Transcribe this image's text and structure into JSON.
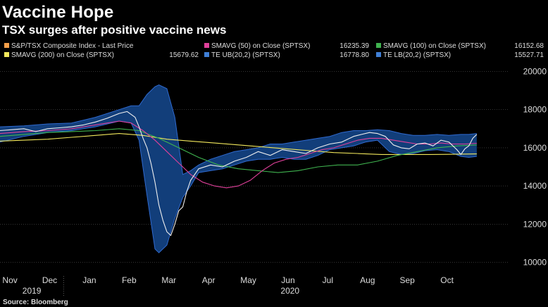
{
  "title": "Vaccine Hope",
  "subtitle": "TSX surges after positive vaccine news",
  "source": "Source: Bloomberg",
  "legend": [
    {
      "label": "S&P/TSX Composite Index - Last Price",
      "value": "",
      "color": "#f5a04a"
    },
    {
      "label": "SMAVG (50)  on Close (SPTSX)",
      "value": "16235.39",
      "color": "#e0409a"
    },
    {
      "label": "SMAVG (100)  on Close (SPTSX)",
      "value": "16152.68",
      "color": "#3fb34f"
    },
    {
      "label": "SMAVG (200)  on Close (SPTSX)",
      "value": "15679.62",
      "color": "#f2e85c"
    },
    {
      "label": "TE UB(20,2) (SPTSX)",
      "value": "16778.80",
      "color": "#3f7fd6"
    },
    {
      "label": "TE LB(20,2) (SPTSX)",
      "value": "15527.71",
      "color": "#3f7fd6"
    }
  ],
  "chart_data": {
    "type": "line",
    "ylim": [
      9500,
      20500
    ],
    "yticks": [
      10000,
      12000,
      14000,
      16000,
      18000,
      20000
    ],
    "xlim": [
      0,
      12.8
    ],
    "month_labels": [
      "Nov",
      "Dec",
      "Jan",
      "Feb",
      "Mar",
      "Apr",
      "May",
      "Jun",
      "Jul",
      "Aug",
      "Sep",
      "Oct"
    ],
    "year_labels": [
      {
        "label": "2019",
        "at": 0.8
      },
      {
        "label": "2020",
        "at": 7.3
      }
    ],
    "year_divider_at": 1.6,
    "grid": true,
    "colors": {
      "price": "#f0f0f0",
      "band_fill": "#123e7a",
      "band_edge": "#2f6ad0",
      "sma50": "#e0409a",
      "sma100": "#3fb34f",
      "sma200": "#f2e85c",
      "grid": "#555555"
    },
    "series": [
      {
        "key": "price",
        "x": [
          0,
          0.3,
          0.6,
          0.9,
          1.2,
          1.5,
          1.8,
          2.1,
          2.4,
          2.7,
          3.0,
          3.2,
          3.4,
          3.5,
          3.6,
          3.7,
          3.8,
          3.9,
          4.0,
          4.1,
          4.2,
          4.3,
          4.4,
          4.5,
          4.6,
          4.7,
          4.8,
          4.9,
          5.0,
          5.3,
          5.6,
          5.9,
          6.2,
          6.5,
          6.8,
          7.1,
          7.4,
          7.7,
          8.0,
          8.3,
          8.6,
          8.9,
          9.1,
          9.3,
          9.5,
          9.7,
          9.9,
          10.1,
          10.3,
          10.5,
          10.7,
          10.9,
          11.1,
          11.3,
          11.5,
          11.6,
          11.7,
          11.8,
          11.9,
          12.0
        ],
        "values": [
          16900,
          16950,
          17000,
          16850,
          17000,
          17050,
          17100,
          17200,
          17350,
          17550,
          17800,
          17900,
          17600,
          17100,
          16500,
          16000,
          15200,
          14200,
          13000,
          12200,
          11600,
          11400,
          12000,
          12700,
          12900,
          13700,
          14300,
          14600,
          14900,
          15100,
          15000,
          15300,
          15500,
          15800,
          15600,
          15900,
          15800,
          15700,
          16000,
          16200,
          16300,
          16600,
          16700,
          16800,
          16750,
          16600,
          16150,
          16000,
          15950,
          16200,
          16250,
          16100,
          16400,
          16300,
          15900,
          15650,
          15950,
          16100,
          16500,
          16700
        ]
      },
      {
        "key": "upper_band",
        "x": [
          0,
          0.6,
          1.2,
          1.8,
          2.4,
          3.0,
          3.3,
          3.5,
          3.7,
          3.9,
          4.0,
          4.2,
          4.4,
          4.6,
          4.8,
          5.0,
          5.3,
          5.6,
          5.9,
          6.2,
          6.5,
          6.8,
          7.1,
          7.4,
          7.7,
          8.0,
          8.3,
          8.6,
          8.9,
          9.2,
          9.5,
          9.8,
          10.1,
          10.4,
          10.7,
          11.0,
          11.3,
          11.6,
          11.8,
          12.0
        ],
        "values": [
          17100,
          17150,
          17250,
          17300,
          17600,
          18000,
          18200,
          18200,
          18800,
          19200,
          19300,
          19100,
          17600,
          14600,
          14800,
          15100,
          15400,
          15600,
          15800,
          15900,
          16000,
          16200,
          16200,
          16300,
          16400,
          16500,
          16600,
          16800,
          16900,
          16900,
          16950,
          16900,
          16750,
          16650,
          16650,
          16700,
          16650,
          16700,
          16700,
          16750
        ]
      },
      {
        "key": "lower_band",
        "x": [
          0,
          0.6,
          1.2,
          1.8,
          2.4,
          3.0,
          3.3,
          3.5,
          3.7,
          3.9,
          4.0,
          4.2,
          4.4,
          4.6,
          4.8,
          5.0,
          5.3,
          5.6,
          5.9,
          6.2,
          6.5,
          6.8,
          7.1,
          7.4,
          7.7,
          8.0,
          8.3,
          8.6,
          8.9,
          9.2,
          9.5,
          9.8,
          10.1,
          10.4,
          10.7,
          11.0,
          11.3,
          11.6,
          11.8,
          12.0
        ],
        "values": [
          16300,
          16600,
          16800,
          16900,
          17100,
          17400,
          17300,
          16400,
          13500,
          10700,
          10500,
          10900,
          12300,
          13400,
          14000,
          14700,
          14800,
          14900,
          15100,
          15300,
          15400,
          15400,
          15500,
          15400,
          15400,
          15600,
          15900,
          16000,
          16100,
          16300,
          16400,
          15800,
          15650,
          15700,
          15850,
          15900,
          15800,
          15550,
          15500,
          15550
        ]
      },
      {
        "key": "sma50",
        "x": [
          0,
          0.6,
          1.2,
          1.8,
          2.4,
          3.0,
          3.3,
          3.6,
          3.9,
          4.2,
          4.5,
          4.8,
          5.1,
          5.4,
          5.7,
          6.0,
          6.3,
          6.6,
          6.9,
          7.2,
          7.5,
          7.8,
          8.1,
          8.4,
          8.7,
          9.0,
          9.3,
          9.6,
          9.9,
          10.2,
          10.5,
          10.8,
          11.1,
          11.4,
          11.7,
          12.0
        ],
        "values": [
          16750,
          16850,
          16900,
          17000,
          17200,
          17400,
          17300,
          16900,
          16400,
          15800,
          15200,
          14600,
          14200,
          14000,
          13900,
          14000,
          14300,
          14800,
          15200,
          15400,
          15500,
          15700,
          15900,
          16000,
          16200,
          16400,
          16500,
          16500,
          16400,
          16300,
          16200,
          16200,
          16250,
          16200,
          16200,
          16235
        ]
      },
      {
        "key": "sma100",
        "x": [
          0,
          0.6,
          1.2,
          1.8,
          2.4,
          3.0,
          3.5,
          4.0,
          4.5,
          5.0,
          5.5,
          6.0,
          6.5,
          7.0,
          7.5,
          8.0,
          8.5,
          9.0,
          9.5,
          10.0,
          10.5,
          11.0,
          11.5,
          12.0
        ],
        "values": [
          16600,
          16700,
          16800,
          16850,
          16900,
          17000,
          16900,
          16500,
          16000,
          15500,
          15100,
          14900,
          14800,
          14700,
          14800,
          15000,
          15100,
          15100,
          15300,
          15600,
          15800,
          16000,
          16100,
          16152
        ]
      },
      {
        "key": "sma200",
        "x": [
          0,
          0.6,
          1.2,
          1.8,
          2.4,
          3.0,
          3.6,
          4.2,
          4.8,
          5.4,
          6.0,
          6.6,
          7.2,
          7.8,
          8.4,
          9.0,
          9.6,
          10.2,
          10.8,
          11.4,
          12.0
        ],
        "values": [
          16350,
          16400,
          16450,
          16550,
          16650,
          16750,
          16650,
          16450,
          16350,
          16250,
          16150,
          16050,
          15950,
          15850,
          15750,
          15700,
          15650,
          15650,
          15650,
          15660,
          15680
        ]
      }
    ]
  }
}
